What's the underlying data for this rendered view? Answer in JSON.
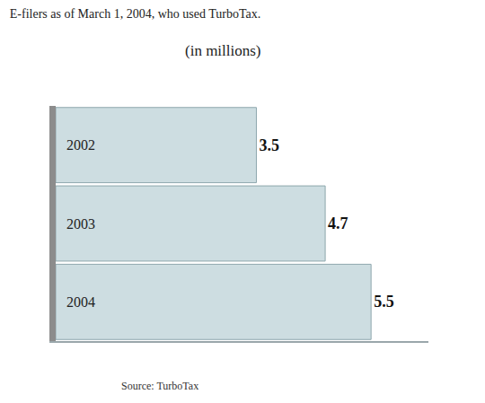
{
  "chart_data": {
    "type": "bar",
    "orientation": "horizontal",
    "title": "E-filers as of March 1, 2004, who used TurboTax.",
    "subtitle": "(in millions)",
    "categories": [
      "2002",
      "2003",
      "2004"
    ],
    "values": [
      3.5,
      4.7,
      5.5
    ],
    "xlim": [
      0,
      6.5
    ],
    "color": "#cddde1",
    "data_labels": true,
    "tick_labels": false,
    "grid": false,
    "annotations": [
      "Source: TurboTax"
    ]
  }
}
